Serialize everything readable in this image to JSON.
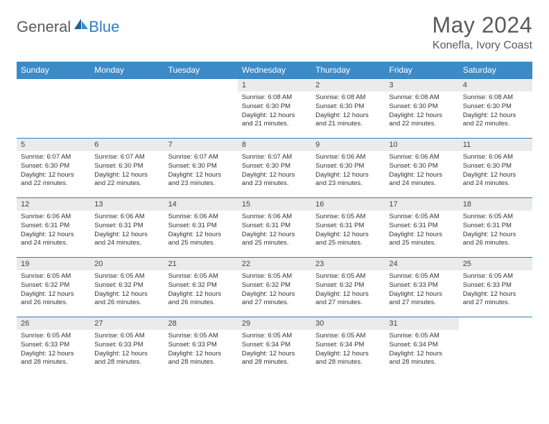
{
  "brand": {
    "general": "General",
    "blue": "Blue",
    "accent_color": "#2e7cc0",
    "grey_color": "#5a5a5a"
  },
  "title": "May 2024",
  "location": "Konefla, Ivory Coast",
  "weekdays": [
    "Sunday",
    "Monday",
    "Tuesday",
    "Wednesday",
    "Thursday",
    "Friday",
    "Saturday"
  ],
  "header_bg": "#3b8bc8",
  "daynum_bg": "#ebebeb",
  "border_color": "#2e7cc0",
  "weeks": [
    [
      {
        "n": "",
        "lines": []
      },
      {
        "n": "",
        "lines": []
      },
      {
        "n": "",
        "lines": []
      },
      {
        "n": "1",
        "lines": [
          "Sunrise: 6:08 AM",
          "Sunset: 6:30 PM",
          "Daylight: 12 hours",
          "and 21 minutes."
        ]
      },
      {
        "n": "2",
        "lines": [
          "Sunrise: 6:08 AM",
          "Sunset: 6:30 PM",
          "Daylight: 12 hours",
          "and 21 minutes."
        ]
      },
      {
        "n": "3",
        "lines": [
          "Sunrise: 6:08 AM",
          "Sunset: 6:30 PM",
          "Daylight: 12 hours",
          "and 22 minutes."
        ]
      },
      {
        "n": "4",
        "lines": [
          "Sunrise: 6:08 AM",
          "Sunset: 6:30 PM",
          "Daylight: 12 hours",
          "and 22 minutes."
        ]
      }
    ],
    [
      {
        "n": "5",
        "lines": [
          "Sunrise: 6:07 AM",
          "Sunset: 6:30 PM",
          "Daylight: 12 hours",
          "and 22 minutes."
        ]
      },
      {
        "n": "6",
        "lines": [
          "Sunrise: 6:07 AM",
          "Sunset: 6:30 PM",
          "Daylight: 12 hours",
          "and 22 minutes."
        ]
      },
      {
        "n": "7",
        "lines": [
          "Sunrise: 6:07 AM",
          "Sunset: 6:30 PM",
          "Daylight: 12 hours",
          "and 23 minutes."
        ]
      },
      {
        "n": "8",
        "lines": [
          "Sunrise: 6:07 AM",
          "Sunset: 6:30 PM",
          "Daylight: 12 hours",
          "and 23 minutes."
        ]
      },
      {
        "n": "9",
        "lines": [
          "Sunrise: 6:06 AM",
          "Sunset: 6:30 PM",
          "Daylight: 12 hours",
          "and 23 minutes."
        ]
      },
      {
        "n": "10",
        "lines": [
          "Sunrise: 6:06 AM",
          "Sunset: 6:30 PM",
          "Daylight: 12 hours",
          "and 24 minutes."
        ]
      },
      {
        "n": "11",
        "lines": [
          "Sunrise: 6:06 AM",
          "Sunset: 6:30 PM",
          "Daylight: 12 hours",
          "and 24 minutes."
        ]
      }
    ],
    [
      {
        "n": "12",
        "lines": [
          "Sunrise: 6:06 AM",
          "Sunset: 6:31 PM",
          "Daylight: 12 hours",
          "and 24 minutes."
        ]
      },
      {
        "n": "13",
        "lines": [
          "Sunrise: 6:06 AM",
          "Sunset: 6:31 PM",
          "Daylight: 12 hours",
          "and 24 minutes."
        ]
      },
      {
        "n": "14",
        "lines": [
          "Sunrise: 6:06 AM",
          "Sunset: 6:31 PM",
          "Daylight: 12 hours",
          "and 25 minutes."
        ]
      },
      {
        "n": "15",
        "lines": [
          "Sunrise: 6:06 AM",
          "Sunset: 6:31 PM",
          "Daylight: 12 hours",
          "and 25 minutes."
        ]
      },
      {
        "n": "16",
        "lines": [
          "Sunrise: 6:05 AM",
          "Sunset: 6:31 PM",
          "Daylight: 12 hours",
          "and 25 minutes."
        ]
      },
      {
        "n": "17",
        "lines": [
          "Sunrise: 6:05 AM",
          "Sunset: 6:31 PM",
          "Daylight: 12 hours",
          "and 25 minutes."
        ]
      },
      {
        "n": "18",
        "lines": [
          "Sunrise: 6:05 AM",
          "Sunset: 6:31 PM",
          "Daylight: 12 hours",
          "and 26 minutes."
        ]
      }
    ],
    [
      {
        "n": "19",
        "lines": [
          "Sunrise: 6:05 AM",
          "Sunset: 6:32 PM",
          "Daylight: 12 hours",
          "and 26 minutes."
        ]
      },
      {
        "n": "20",
        "lines": [
          "Sunrise: 6:05 AM",
          "Sunset: 6:32 PM",
          "Daylight: 12 hours",
          "and 26 minutes."
        ]
      },
      {
        "n": "21",
        "lines": [
          "Sunrise: 6:05 AM",
          "Sunset: 6:32 PM",
          "Daylight: 12 hours",
          "and 26 minutes."
        ]
      },
      {
        "n": "22",
        "lines": [
          "Sunrise: 6:05 AM",
          "Sunset: 6:32 PM",
          "Daylight: 12 hours",
          "and 27 minutes."
        ]
      },
      {
        "n": "23",
        "lines": [
          "Sunrise: 6:05 AM",
          "Sunset: 6:32 PM",
          "Daylight: 12 hours",
          "and 27 minutes."
        ]
      },
      {
        "n": "24",
        "lines": [
          "Sunrise: 6:05 AM",
          "Sunset: 6:33 PM",
          "Daylight: 12 hours",
          "and 27 minutes."
        ]
      },
      {
        "n": "25",
        "lines": [
          "Sunrise: 6:05 AM",
          "Sunset: 6:33 PM",
          "Daylight: 12 hours",
          "and 27 minutes."
        ]
      }
    ],
    [
      {
        "n": "26",
        "lines": [
          "Sunrise: 6:05 AM",
          "Sunset: 6:33 PM",
          "Daylight: 12 hours",
          "and 28 minutes."
        ]
      },
      {
        "n": "27",
        "lines": [
          "Sunrise: 6:05 AM",
          "Sunset: 6:33 PM",
          "Daylight: 12 hours",
          "and 28 minutes."
        ]
      },
      {
        "n": "28",
        "lines": [
          "Sunrise: 6:05 AM",
          "Sunset: 6:33 PM",
          "Daylight: 12 hours",
          "and 28 minutes."
        ]
      },
      {
        "n": "29",
        "lines": [
          "Sunrise: 6:05 AM",
          "Sunset: 6:34 PM",
          "Daylight: 12 hours",
          "and 28 minutes."
        ]
      },
      {
        "n": "30",
        "lines": [
          "Sunrise: 6:05 AM",
          "Sunset: 6:34 PM",
          "Daylight: 12 hours",
          "and 28 minutes."
        ]
      },
      {
        "n": "31",
        "lines": [
          "Sunrise: 6:05 AM",
          "Sunset: 6:34 PM",
          "Daylight: 12 hours",
          "and 28 minutes."
        ]
      },
      {
        "n": "",
        "lines": []
      }
    ]
  ]
}
